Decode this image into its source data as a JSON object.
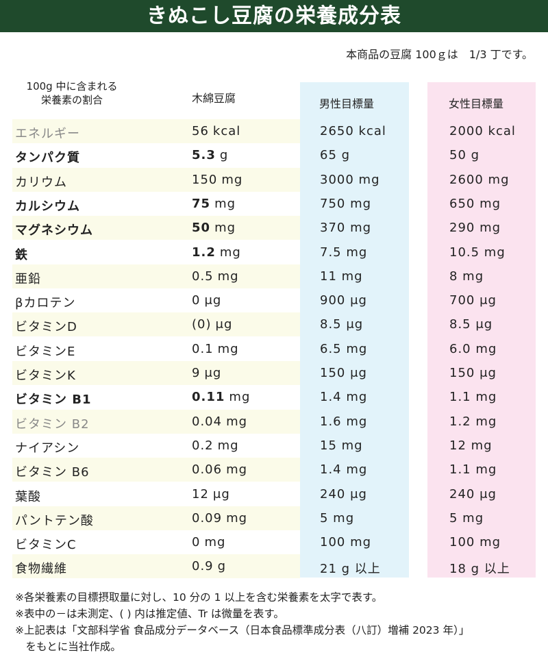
{
  "title": "きぬこし豆腐の栄養成分表",
  "note_top": "本商品の豆腐 100ｇは　1/3 丁です。",
  "headers": {
    "ratio_line1": "100g 中に含まれる",
    "ratio_line2": "栄養素の割合",
    "momen": "木綿豆腐",
    "male": "男性目標量",
    "female": "女性目標量"
  },
  "rows": [
    {
      "name": "エネルギー",
      "val": "56",
      "unit": "kcal",
      "male": "2650 kcal",
      "female": "2000 kcal",
      "bold": false,
      "grey": true
    },
    {
      "name": "タンパク質",
      "val": "5.3",
      "unit": "g",
      "male": "65 g",
      "female": "50 g",
      "bold": true,
      "grey": false
    },
    {
      "name": "カリウム",
      "val": "150",
      "unit": "mg",
      "male": "3000 mg",
      "female": "2600 mg",
      "bold": false,
      "grey": false
    },
    {
      "name": "カルシウム",
      "val": "75",
      "unit": "mg",
      "male": "750 mg",
      "female": "650 mg",
      "bold": true,
      "grey": false
    },
    {
      "name": "マグネシウム",
      "val": "50",
      "unit": "mg",
      "male": "370 mg",
      "female": "290 mg",
      "bold": true,
      "grey": false
    },
    {
      "name": "鉄",
      "val": "1.2",
      "unit": "mg",
      "male": "7.5 mg",
      "female": "10.5 mg",
      "bold": true,
      "grey": false
    },
    {
      "name": "亜鉛",
      "val": "0.5",
      "unit": "mg",
      "male": "11 mg",
      "female": "8 mg",
      "bold": false,
      "grey": false
    },
    {
      "name": "βカロテン",
      "val": "0",
      "unit": "μg",
      "male": "900 μg",
      "female": "700 μg",
      "bold": false,
      "grey": false
    },
    {
      "name": "ビタミンD",
      "val": "(0)",
      "unit": "μg",
      "male": "8.5 μg",
      "female": "8.5 μg",
      "bold": false,
      "grey": false
    },
    {
      "name": "ビタミンE",
      "val": "0.1",
      "unit": "mg",
      "male": "6.5 mg",
      "female": "6.0 mg",
      "bold": false,
      "grey": false
    },
    {
      "name": "ビタミンK",
      "val": "9",
      "unit": "μg",
      "male": "150 μg",
      "female": "150 μg",
      "bold": false,
      "grey": false
    },
    {
      "name": "ビタミン B1",
      "val": "0.11",
      "unit": "mg",
      "male": "1.4 mg",
      "female": "1.1 mg",
      "bold": true,
      "grey": false
    },
    {
      "name": "ビタミン B2",
      "val": "0.04",
      "unit": "mg",
      "male": "1.6 mg",
      "female": "1.2 mg",
      "bold": false,
      "grey": true
    },
    {
      "name": "ナイアシン",
      "val": "0.2",
      "unit": "mg",
      "male": "15 mg",
      "female": "12 mg",
      "bold": false,
      "grey": false
    },
    {
      "name": "ビタミン B6",
      "val": "0.06",
      "unit": "mg",
      "male": "1.4 mg",
      "female": "1.1 mg",
      "bold": false,
      "grey": false
    },
    {
      "name": "葉酸",
      "val": "12",
      "unit": "μg",
      "male": "240 μg",
      "female": "240 μg",
      "bold": false,
      "grey": false
    },
    {
      "name": "パントテン酸",
      "val": "0.09",
      "unit": "mg",
      "male": "5 mg",
      "female": "5 mg",
      "bold": false,
      "grey": false
    },
    {
      "name": "ビタミンC",
      "val": "0",
      "unit": "mg",
      "male": "100 mg",
      "female": "100 mg",
      "bold": false,
      "grey": false
    },
    {
      "name": "食物繊維",
      "val": "0.9",
      "unit": "g",
      "male": "21 g 以上",
      "female": "18 g 以上",
      "bold": false,
      "grey": false
    }
  ],
  "footnotes": [
    "※各栄養素の目標摂取量に対し、10 分の 1 以上を含む栄養素を太字で表す。",
    "※表中の－は未測定、( ) 内は推定値、Tr は微量を表す。",
    "※上記表は「文部科学省 食品成分データベース（日本食品標準成分表（八訂）増補 2023 年）」",
    "　をもとに当社作成。"
  ]
}
